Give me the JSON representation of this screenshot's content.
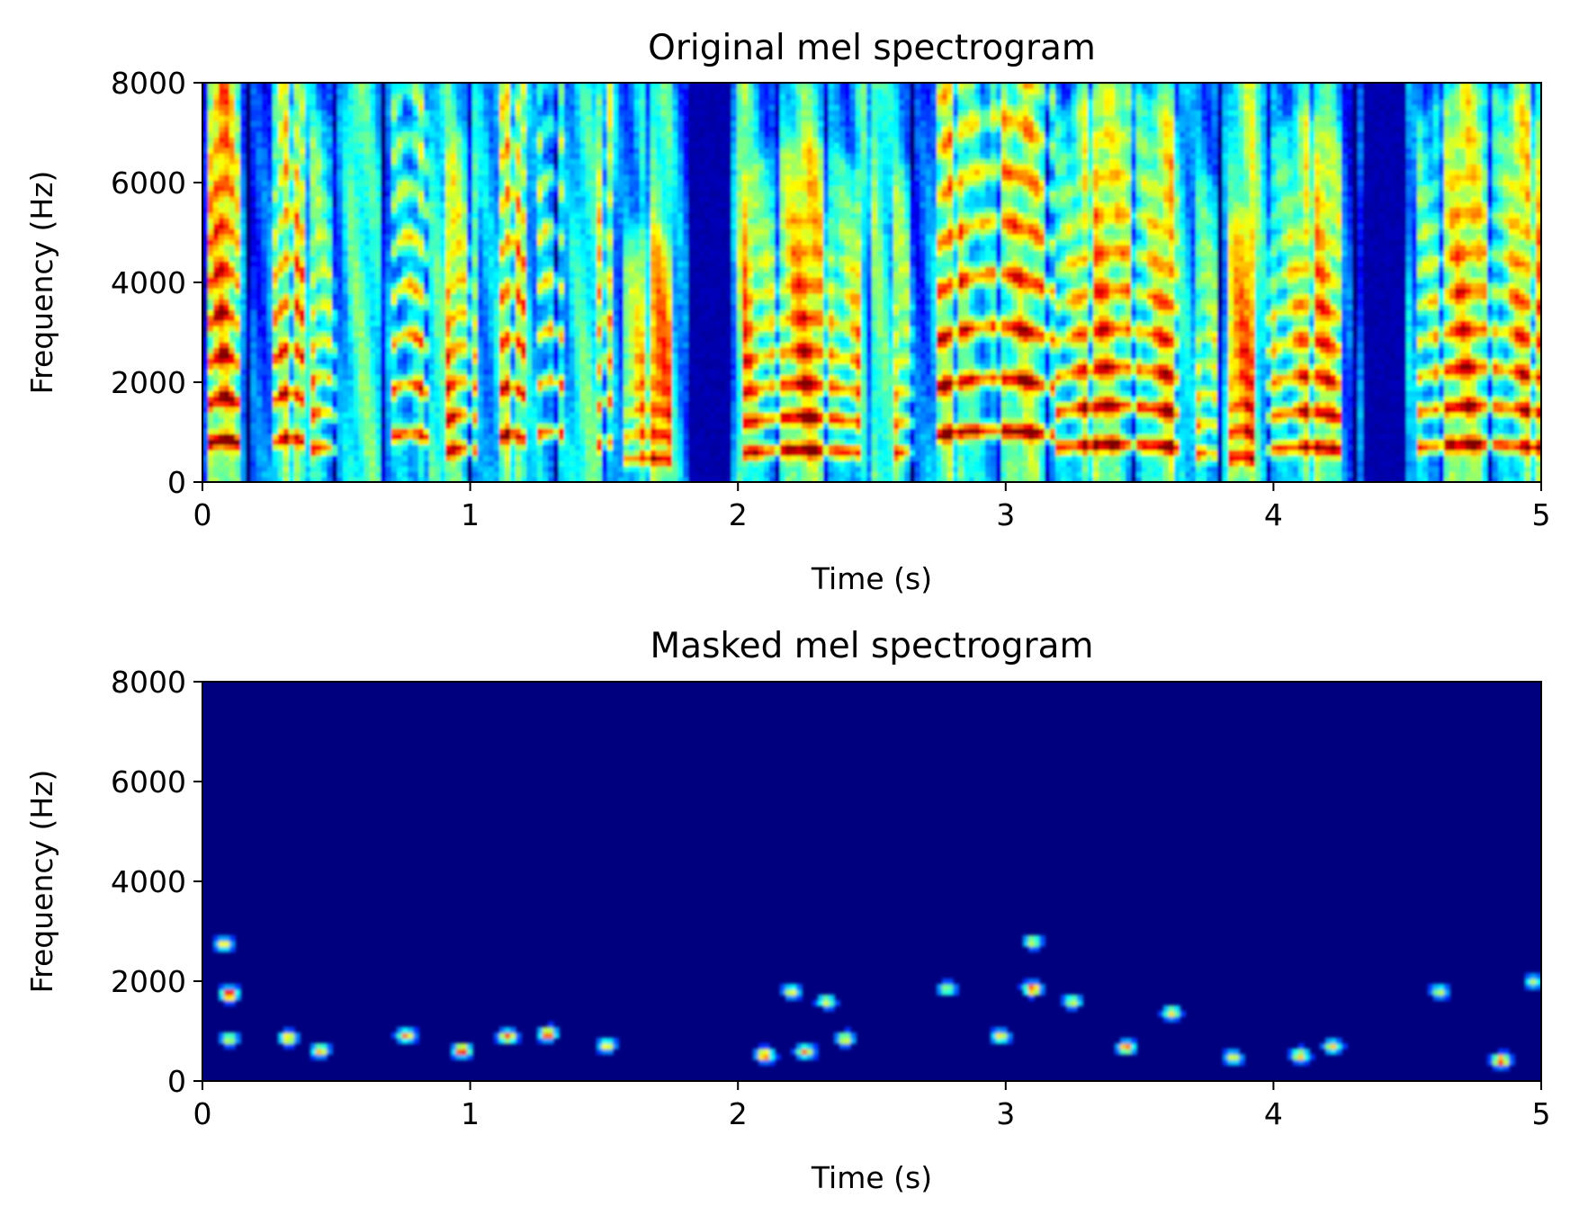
{
  "figure": {
    "panels": [
      {
        "id": "original",
        "title": "Original mel spectrogram"
      },
      {
        "id": "masked",
        "title": "Masked mel spectrogram"
      }
    ]
  },
  "chart_data": [
    {
      "type": "heatmap",
      "title": "Original mel spectrogram",
      "xlabel": "Time (s)",
      "ylabel": "Frequency (Hz)",
      "xlim": [
        0,
        5
      ],
      "ylim": [
        0,
        8000
      ],
      "xticks": [
        0,
        1,
        2,
        3,
        4,
        5
      ],
      "yticks": [
        0,
        2000,
        4000,
        6000,
        8000
      ],
      "colormap": "jet",
      "grid": false,
      "legend": "none",
      "silent_regions_s": [
        [
          1.81,
          1.97
        ],
        [
          4.33,
          4.49
        ]
      ],
      "voiced_segments": [
        {
          "t0": 0.02,
          "t1": 0.14,
          "f0": 780,
          "strength": 0.9
        },
        {
          "t0": 0.27,
          "t1": 0.38,
          "f0": 820,
          "strength": 0.85
        },
        {
          "t0": 0.4,
          "t1": 0.5,
          "f0": 650,
          "strength": 0.8
        },
        {
          "t0": 0.7,
          "t1": 0.84,
          "f0": 900,
          "strength": 0.9
        },
        {
          "t0": 0.91,
          "t1": 1.03,
          "f0": 620,
          "strength": 0.85
        },
        {
          "t0": 1.1,
          "t1": 1.2,
          "f0": 880,
          "strength": 0.85
        },
        {
          "t0": 1.24,
          "t1": 1.36,
          "f0": 930,
          "strength": 0.85
        },
        {
          "t0": 1.48,
          "t1": 1.54,
          "f0": 750,
          "strength": 0.7
        },
        {
          "t0": 1.57,
          "t1": 1.75,
          "f0": 450,
          "strength": 0.75
        },
        {
          "t0": 2.02,
          "t1": 2.46,
          "f0": 600,
          "strength": 0.95
        },
        {
          "t0": 2.58,
          "t1": 2.67,
          "f0": 560,
          "strength": 0.7
        },
        {
          "t0": 2.74,
          "t1": 3.18,
          "f0": 950,
          "strength": 0.95
        },
        {
          "t0": 3.18,
          "t1": 3.64,
          "f0": 700,
          "strength": 0.95
        },
        {
          "t0": 3.7,
          "t1": 3.8,
          "f0": 540,
          "strength": 0.75
        },
        {
          "t0": 3.83,
          "t1": 3.93,
          "f0": 480,
          "strength": 0.75
        },
        {
          "t0": 3.98,
          "t1": 4.26,
          "f0": 650,
          "strength": 0.9
        },
        {
          "t0": 4.53,
          "t1": 4.99,
          "f0": 700,
          "strength": 0.9
        }
      ]
    },
    {
      "type": "heatmap",
      "title": "Masked mel spectrogram",
      "xlabel": "Time (s)",
      "ylabel": "Frequency (Hz)",
      "xlim": [
        0,
        5
      ],
      "ylim": [
        0,
        8000
      ],
      "xticks": [
        0,
        1,
        2,
        3,
        4,
        5
      ],
      "yticks": [
        0,
        2000,
        4000,
        6000,
        8000
      ],
      "colormap": "jet",
      "grid": false,
      "legend": "none",
      "bright_spots": [
        {
          "t": 0.1,
          "f": 1750,
          "v": 1.0
        },
        {
          "t": 0.08,
          "f": 2750,
          "v": 0.6
        },
        {
          "t": 0.1,
          "f": 850,
          "v": 0.55
        },
        {
          "t": 0.32,
          "f": 870,
          "v": 0.7
        },
        {
          "t": 0.44,
          "f": 620,
          "v": 0.65
        },
        {
          "t": 0.76,
          "f": 920,
          "v": 0.7
        },
        {
          "t": 0.97,
          "f": 620,
          "v": 0.9
        },
        {
          "t": 1.14,
          "f": 900,
          "v": 0.8
        },
        {
          "t": 1.29,
          "f": 950,
          "v": 0.85
        },
        {
          "t": 1.51,
          "f": 720,
          "v": 0.6
        },
        {
          "t": 2.1,
          "f": 530,
          "v": 0.8
        },
        {
          "t": 2.2,
          "f": 1800,
          "v": 0.55
        },
        {
          "t": 2.25,
          "f": 600,
          "v": 0.7
        },
        {
          "t": 2.33,
          "f": 1600,
          "v": 0.55
        },
        {
          "t": 2.4,
          "f": 850,
          "v": 0.6
        },
        {
          "t": 2.78,
          "f": 1850,
          "v": 0.5
        },
        {
          "t": 2.98,
          "f": 900,
          "v": 0.6
        },
        {
          "t": 3.1,
          "f": 1850,
          "v": 0.85
        },
        {
          "t": 3.1,
          "f": 2800,
          "v": 0.55
        },
        {
          "t": 3.25,
          "f": 1600,
          "v": 0.55
        },
        {
          "t": 3.45,
          "f": 680,
          "v": 0.75
        },
        {
          "t": 3.62,
          "f": 1380,
          "v": 0.6
        },
        {
          "t": 3.85,
          "f": 480,
          "v": 0.55
        },
        {
          "t": 4.1,
          "f": 520,
          "v": 0.65
        },
        {
          "t": 4.22,
          "f": 700,
          "v": 0.6
        },
        {
          "t": 4.62,
          "f": 1800,
          "v": 0.5
        },
        {
          "t": 4.85,
          "f": 420,
          "v": 0.85
        },
        {
          "t": 4.97,
          "f": 2000,
          "v": 0.45
        }
      ]
    }
  ]
}
